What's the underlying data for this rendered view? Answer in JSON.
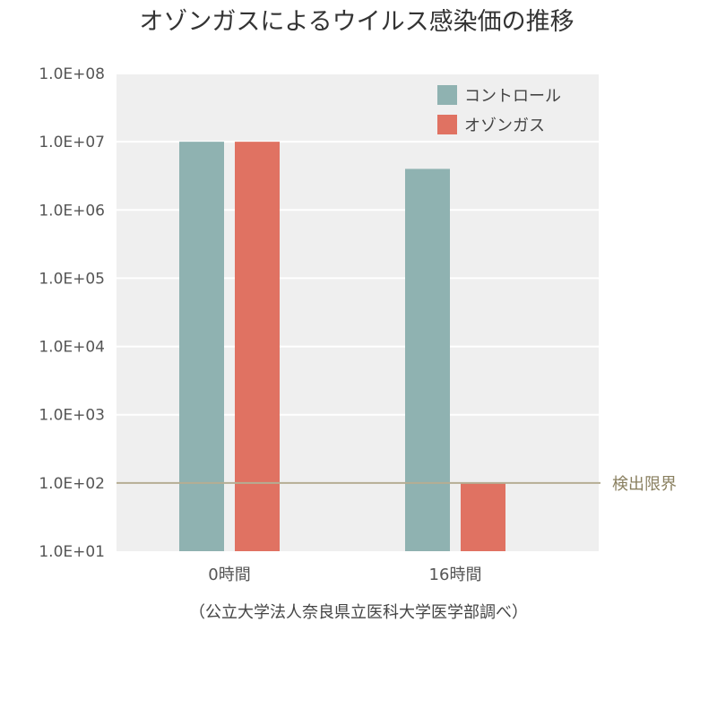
{
  "chart_data": {
    "type": "bar",
    "title": "オゾンガスによるウイルス感染価の推移",
    "categories": [
      "0時間",
      "16時間"
    ],
    "series": [
      {
        "name": "コントロール",
        "values": [
          10000000,
          4000000
        ],
        "color": "#8fb2b1"
      },
      {
        "name": "オゾンガス",
        "values": [
          10000000,
          100
        ],
        "color": "#e07262"
      }
    ],
    "y_scale": "log",
    "ylim": [
      10,
      100000000
    ],
    "ytick_values": [
      10,
      100,
      1000,
      10000,
      100000,
      1000000,
      10000000,
      100000000
    ],
    "ytick_labels": [
      "1.0E+01",
      "1.0E+02",
      "1.0E+03",
      "1.0E+04",
      "1.0E+05",
      "1.0E+06",
      "1.0E+07",
      "1.0E+08"
    ],
    "reference_line": {
      "value": 100,
      "label": "検出限界",
      "color": "#b5ad93"
    },
    "legend_position": "top-right",
    "grid": true,
    "plot_background": "#efefef",
    "source_note": "（公立大学法人奈良県立医科大学医学部調べ）"
  }
}
